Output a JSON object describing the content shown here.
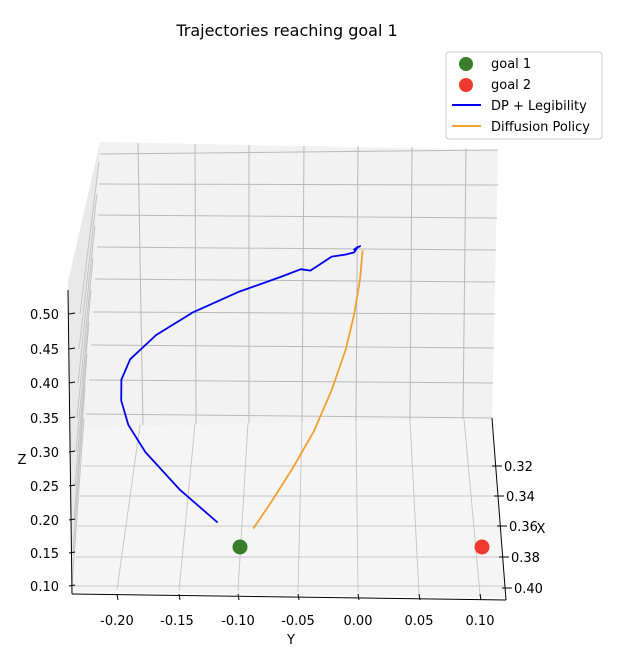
{
  "chart_data": {
    "type": "line",
    "projection": "3d",
    "title": "Trajectories reaching goal 1",
    "xlabel": "X",
    "ylabel": "Y",
    "zlabel": "Z",
    "x_ticks": [
      "0.32",
      "0.34",
      "0.36",
      "0.38",
      "0.40"
    ],
    "y_ticks": [
      "-0.20",
      "-0.15",
      "-0.10",
      "-0.05",
      "0.00",
      "0.05",
      "0.10"
    ],
    "z_ticks": [
      "0.10",
      "0.15",
      "0.20",
      "0.25",
      "0.30",
      "0.35",
      "0.40",
      "0.45",
      "0.50"
    ],
    "ylim": [
      -0.24,
      0.12
    ],
    "zlim": [
      0.1,
      0.53
    ],
    "grid": true,
    "legend_position": "top-right",
    "legend": [
      "goal 1",
      "goal 2",
      "DP + Legibility",
      "Diffusion Policy"
    ],
    "series": [
      {
        "name": "DP + Legibility",
        "color": "#0000ee",
        "points": [
          {
            "y": -0.118,
            "z": 0.197
          },
          {
            "y": -0.15,
            "z": 0.245
          },
          {
            "y": -0.178,
            "z": 0.3
          },
          {
            "y": -0.192,
            "z": 0.34
          },
          {
            "y": -0.198,
            "z": 0.375
          },
          {
            "y": -0.198,
            "z": 0.405
          },
          {
            "y": -0.191,
            "z": 0.435
          },
          {
            "y": -0.17,
            "z": 0.47
          },
          {
            "y": -0.14,
            "z": 0.502
          },
          {
            "y": -0.1,
            "z": 0.532
          },
          {
            "y": -0.065,
            "z": 0.553
          },
          {
            "y": -0.048,
            "z": 0.564
          },
          {
            "y": -0.04,
            "z": 0.562
          },
          {
            "y": -0.03,
            "z": 0.573
          },
          {
            "y": -0.022,
            "z": 0.582
          },
          {
            "y": -0.01,
            "z": 0.585
          },
          {
            "y": -0.003,
            "z": 0.588
          },
          {
            "y": 0.0,
            "z": 0.596
          },
          {
            "y": -0.003,
            "z": 0.592
          },
          {
            "y": 0.002,
            "z": 0.597
          }
        ]
      },
      {
        "name": "Diffusion Policy",
        "color": "#f0a030",
        "points": [
          {
            "y": -0.087,
            "z": 0.188
          },
          {
            "y": -0.073,
            "z": 0.225
          },
          {
            "y": -0.055,
            "z": 0.275
          },
          {
            "y": -0.037,
            "z": 0.33
          },
          {
            "y": -0.022,
            "z": 0.39
          },
          {
            "y": -0.01,
            "z": 0.45
          },
          {
            "y": -0.003,
            "z": 0.5
          },
          {
            "y": 0.002,
            "z": 0.55
          },
          {
            "y": 0.004,
            "z": 0.59
          }
        ]
      }
    ],
    "markers": [
      {
        "name": "goal 1",
        "color": "#3a7d2c",
        "y": -0.1,
        "z": 0.153
      },
      {
        "name": "goal 2",
        "color": "#ee3a2e",
        "y": 0.1,
        "z": 0.153
      }
    ]
  }
}
